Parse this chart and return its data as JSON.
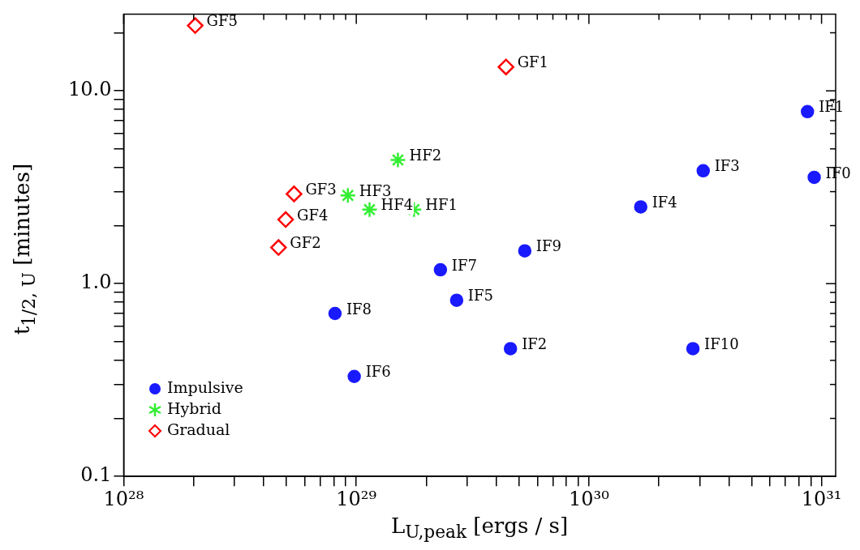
{
  "chart_data": {
    "type": "scatter",
    "xlabel": "L$_{U,peak}$ [ergs / s]",
    "ylabel": "t$_{1/2, U}$ [minutes]",
    "log": "xy",
    "xlim": [
      1e+28,
      1.15e+31
    ],
    "ylim": [
      0.1,
      25
    ],
    "xticks": [
      {
        "value": 1e+28,
        "label": "10²⁸"
      },
      {
        "value": 2e+28,
        "label": null
      },
      {
        "value": 3e+28,
        "label": null
      },
      {
        "value": 4e+28,
        "label": null
      },
      {
        "value": 5e+28,
        "label": null
      },
      {
        "value": 6e+28,
        "label": null
      },
      {
        "value": 7e+28,
        "label": null
      },
      {
        "value": 8e+28,
        "label": null
      },
      {
        "value": 9e+28,
        "label": null
      },
      {
        "value": 1e+29,
        "label": "10²⁹"
      },
      {
        "value": 2e+29,
        "label": null
      },
      {
        "value": 3e+29,
        "label": null
      },
      {
        "value": 4e+29,
        "label": null
      },
      {
        "value": 5e+29,
        "label": null
      },
      {
        "value": 6e+29,
        "label": null
      },
      {
        "value": 7e+29,
        "label": null
      },
      {
        "value": 8e+29,
        "label": null
      },
      {
        "value": 9e+29,
        "label": null
      },
      {
        "value": 1e+30,
        "label": "10³⁰"
      },
      {
        "value": 2e+30,
        "label": null
      },
      {
        "value": 3e+30,
        "label": null
      },
      {
        "value": 4e+30,
        "label": null
      },
      {
        "value": 5e+30,
        "label": null
      },
      {
        "value": 6e+30,
        "label": null
      },
      {
        "value": 7e+30,
        "label": null
      },
      {
        "value": 8e+30,
        "label": null
      },
      {
        "value": 9e+30,
        "label": null
      },
      {
        "value": 1e+31,
        "label": "10³¹"
      }
    ],
    "yticks": [
      {
        "value": 0.1,
        "label": "0.1"
      },
      {
        "value": 0.2,
        "label": null
      },
      {
        "value": 0.3,
        "label": null
      },
      {
        "value": 0.4,
        "label": null
      },
      {
        "value": 0.5,
        "label": null
      },
      {
        "value": 0.6,
        "label": null
      },
      {
        "value": 0.7,
        "label": null
      },
      {
        "value": 0.8,
        "label": null
      },
      {
        "value": 0.9,
        "label": null
      },
      {
        "value": 1,
        "label": "1.0"
      },
      {
        "value": 2,
        "label": null
      },
      {
        "value": 3,
        "label": null
      },
      {
        "value": 4,
        "label": null
      },
      {
        "value": 5,
        "label": null
      },
      {
        "value": 6,
        "label": null
      },
      {
        "value": 7,
        "label": null
      },
      {
        "value": 8,
        "label": null
      },
      {
        "value": 9,
        "label": null
      },
      {
        "value": 10,
        "label": "10.0"
      },
      {
        "value": 20,
        "label": null
      }
    ],
    "grid": false,
    "legend": "bottom left",
    "series": [
      {
        "name": "Impulsive",
        "color": "#1a1aff",
        "marker": "circle",
        "x": [
          8.7e+30,
          9.3e+30,
          3.1e+30,
          1.67e+30,
          5.3e+29,
          2.3e+29,
          2.7e+29,
          4.6e+29,
          2.8e+30,
          8.1e+28,
          9.8e+28
        ],
        "values": [
          7.8,
          3.56,
          3.85,
          2.5,
          1.48,
          1.18,
          0.82,
          0.46,
          0.46,
          0.7,
          0.33
        ]
      },
      {
        "name": "Hybrid",
        "color": "#33ee33",
        "marker": "cross",
        "x": [
          1.51e+29,
          9.2e+28,
          1.14e+29,
          1.77e+29
        ],
        "values": [
          4.38,
          2.87,
          2.42,
          2.42
        ]
      },
      {
        "name": "Gradual",
        "color": "#ff0000",
        "marker": "diamond",
        "x": [
          2.03e+28,
          4.4e+29,
          5.4e+28,
          4.97e+28,
          4.63e+28
        ],
        "values": [
          21.8,
          13.3,
          2.92,
          2.15,
          1.54
        ]
      }
    ],
    "annotations": [
      {
        "text": "IF1",
        "x": 8.7e+30,
        "y": 7.8
      },
      {
        "text": "IF0",
        "x": 9.3e+30,
        "y": 3.56
      },
      {
        "text": "IF3",
        "x": 3.1e+30,
        "y": 3.85
      },
      {
        "text": "IF4",
        "x": 1.67e+30,
        "y": 2.5
      },
      {
        "text": "IF9",
        "x": 5.3e+29,
        "y": 1.48
      },
      {
        "text": "IF7",
        "x": 2.3e+29,
        "y": 1.18
      },
      {
        "text": "IF5",
        "x": 2.7e+29,
        "y": 0.82
      },
      {
        "text": "IF2",
        "x": 4.6e+29,
        "y": 0.46
      },
      {
        "text": "IF10",
        "x": 2.8e+30,
        "y": 0.46
      },
      {
        "text": "IF8",
        "x": 8.1e+28,
        "y": 0.7
      },
      {
        "text": "IF6",
        "x": 9.8e+28,
        "y": 0.33
      },
      {
        "text": "HF2",
        "x": 1.51e+29,
        "y": 4.38
      },
      {
        "text": "HF3",
        "x": 9.2e+28,
        "y": 2.87
      },
      {
        "text": "HF4",
        "x": 1.14e+29,
        "y": 2.42
      },
      {
        "text": "HF1",
        "x": 1.77e+29,
        "y": 2.42
      },
      {
        "text": "GF5",
        "x": 2.03e+28,
        "y": 21.8
      },
      {
        "text": "GF1",
        "x": 4.4e+29,
        "y": 13.3
      },
      {
        "text": "GF3",
        "x": 5.4e+28,
        "y": 2.92
      },
      {
        "text": "GF4",
        "x": 4.97e+28,
        "y": 2.15
      },
      {
        "text": "GF2",
        "x": 4.63e+28,
        "y": 1.54
      }
    ]
  }
}
